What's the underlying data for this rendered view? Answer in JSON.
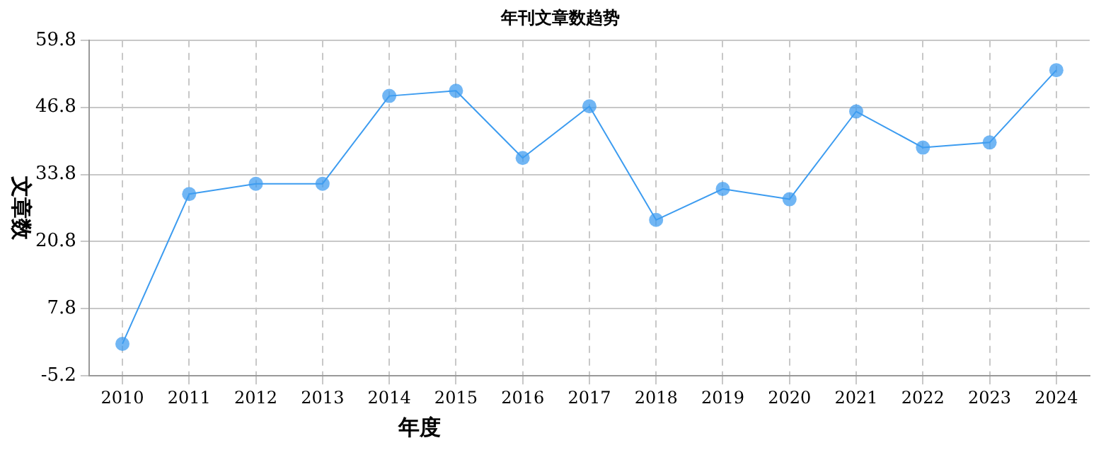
{
  "chart_data": {
    "type": "line",
    "title": "年刊文章数趋势",
    "xlabel": "年度",
    "ylabel": "文章数",
    "categories": [
      "2010",
      "2011",
      "2012",
      "2013",
      "2014",
      "2015",
      "2016",
      "2017",
      "2018",
      "2019",
      "2020",
      "2021",
      "2022",
      "2023",
      "2024"
    ],
    "series": [
      {
        "color": "#3d9cf0",
        "values": [
          1,
          30,
          32,
          32,
          49,
          50,
          37,
          47,
          25,
          31,
          29,
          46,
          39,
          40,
          54
        ]
      }
    ],
    "ylim": [
      -5.2,
      59.8
    ],
    "yticks": [
      -5.2,
      7.8,
      20.8,
      33.8,
      46.8,
      59.8
    ],
    "grid": true,
    "legend": false,
    "marker": "circle",
    "line_style": "solid"
  }
}
